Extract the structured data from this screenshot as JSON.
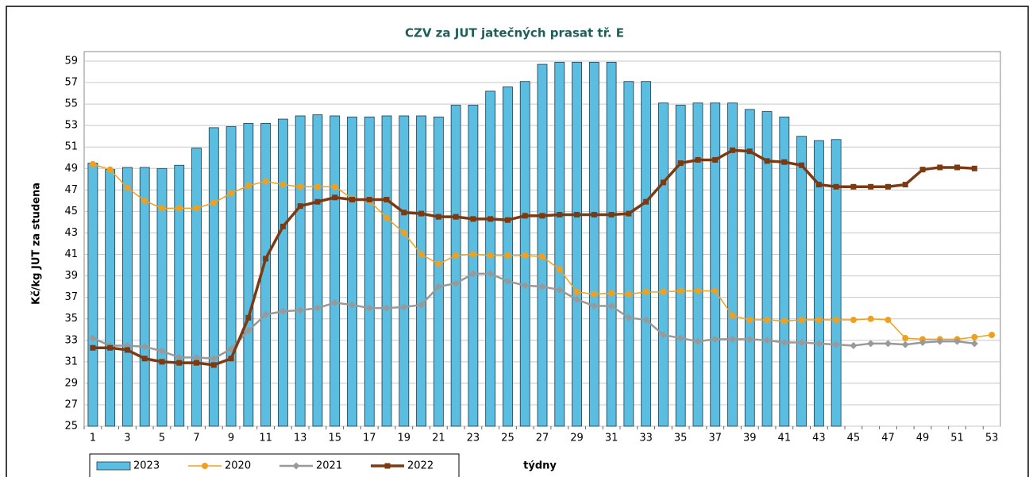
{
  "chart_data": {
    "type": "combo",
    "title": "CZV za JUT jatečných prasat tř. E",
    "x_label": "týdny",
    "y_label": "Kč/kg JUT za studena",
    "categories": [
      1,
      null,
      3,
      null,
      5,
      null,
      7,
      null,
      9,
      null,
      11,
      null,
      13,
      null,
      15,
      null,
      17,
      null,
      19,
      null,
      21,
      null,
      23,
      null,
      25,
      null,
      27,
      null,
      29,
      null,
      31,
      null,
      33,
      null,
      35,
      null,
      37,
      null,
      39,
      null,
      41,
      null,
      43,
      null,
      45,
      null,
      47,
      null,
      49,
      null,
      51,
      null,
      53
    ],
    "ylim": [
      25,
      59
    ],
    "yticks": [
      25,
      27,
      29,
      31,
      33,
      35,
      37,
      39,
      41,
      43,
      45,
      47,
      49,
      51,
      53,
      55,
      57,
      59
    ],
    "grid": true,
    "legend": "bottom-left",
    "series": [
      {
        "name": "2023",
        "type": "bar",
        "color": "#5bbde0",
        "values": [
          49.5,
          48.9,
          49.1,
          49.1,
          49.0,
          49.3,
          50.9,
          52.8,
          52.9,
          53.2,
          53.2,
          53.6,
          53.9,
          54.0,
          53.9,
          53.8,
          53.8,
          53.9,
          53.9,
          53.9,
          53.8,
          54.9,
          54.9,
          56.2,
          56.6,
          57.1,
          58.7,
          58.9,
          58.9,
          58.9,
          58.9,
          57.1,
          57.1,
          55.1,
          54.9,
          55.1,
          55.1,
          55.1,
          54.5,
          54.3,
          53.8,
          52.0,
          51.6,
          51.7,
          null,
          null,
          null,
          null,
          null,
          null,
          null,
          null,
          null
        ]
      },
      {
        "name": "2020",
        "type": "line",
        "marker": "circle",
        "color": "#f0a020",
        "values": [
          49.4,
          48.9,
          47.2,
          46.0,
          45.3,
          45.3,
          45.3,
          45.8,
          46.7,
          47.4,
          47.8,
          47.5,
          47.3,
          47.3,
          47.3,
          46.2,
          46.0,
          44.4,
          43.0,
          41.0,
          40.1,
          40.9,
          41.0,
          40.9,
          40.9,
          40.9,
          40.8,
          39.6,
          37.5,
          37.3,
          37.4,
          37.3,
          37.5,
          37.5,
          37.6,
          37.6,
          37.6,
          35.3,
          34.9,
          34.9,
          34.8,
          34.9,
          34.9,
          34.9,
          34.9,
          35.0,
          34.9,
          33.2,
          33.1,
          33.1,
          33.1,
          33.3,
          33.5
        ]
      },
      {
        "name": "2021",
        "type": "line",
        "marker": "diamond",
        "color": "#999999",
        "values": [
          33.2,
          32.5,
          32.5,
          32.4,
          32.0,
          31.4,
          31.4,
          31.3,
          32.2,
          33.9,
          35.4,
          35.7,
          35.8,
          36.0,
          36.5,
          36.3,
          36.0,
          36.0,
          36.1,
          36.3,
          38.0,
          38.3,
          39.2,
          39.2,
          38.5,
          38.1,
          38.0,
          37.7,
          36.8,
          36.2,
          36.2,
          35.1,
          34.9,
          33.5,
          33.2,
          32.9,
          33.1,
          33.1,
          33.1,
          33.0,
          32.8,
          32.8,
          32.7,
          32.6,
          32.5,
          32.7,
          32.7,
          32.6,
          32.8,
          32.9,
          32.9,
          32.7,
          null
        ]
      },
      {
        "name": "2022",
        "type": "line",
        "marker": "square",
        "color": "#7b3a12",
        "values": [
          32.3,
          32.3,
          32.1,
          31.3,
          31.0,
          30.9,
          30.9,
          30.7,
          31.3,
          35.1,
          40.6,
          43.6,
          45.5,
          45.9,
          46.3,
          46.1,
          46.1,
          46.1,
          44.9,
          44.8,
          44.5,
          44.5,
          44.3,
          44.3,
          44.2,
          44.6,
          44.6,
          44.7,
          44.7,
          44.7,
          44.7,
          44.8,
          45.9,
          47.7,
          49.5,
          49.8,
          49.8,
          50.7,
          50.6,
          49.7,
          49.6,
          49.3,
          47.5,
          47.3,
          47.3,
          47.3,
          47.3,
          47.5,
          48.9,
          49.1,
          49.1,
          49.0,
          null
        ]
      }
    ]
  }
}
